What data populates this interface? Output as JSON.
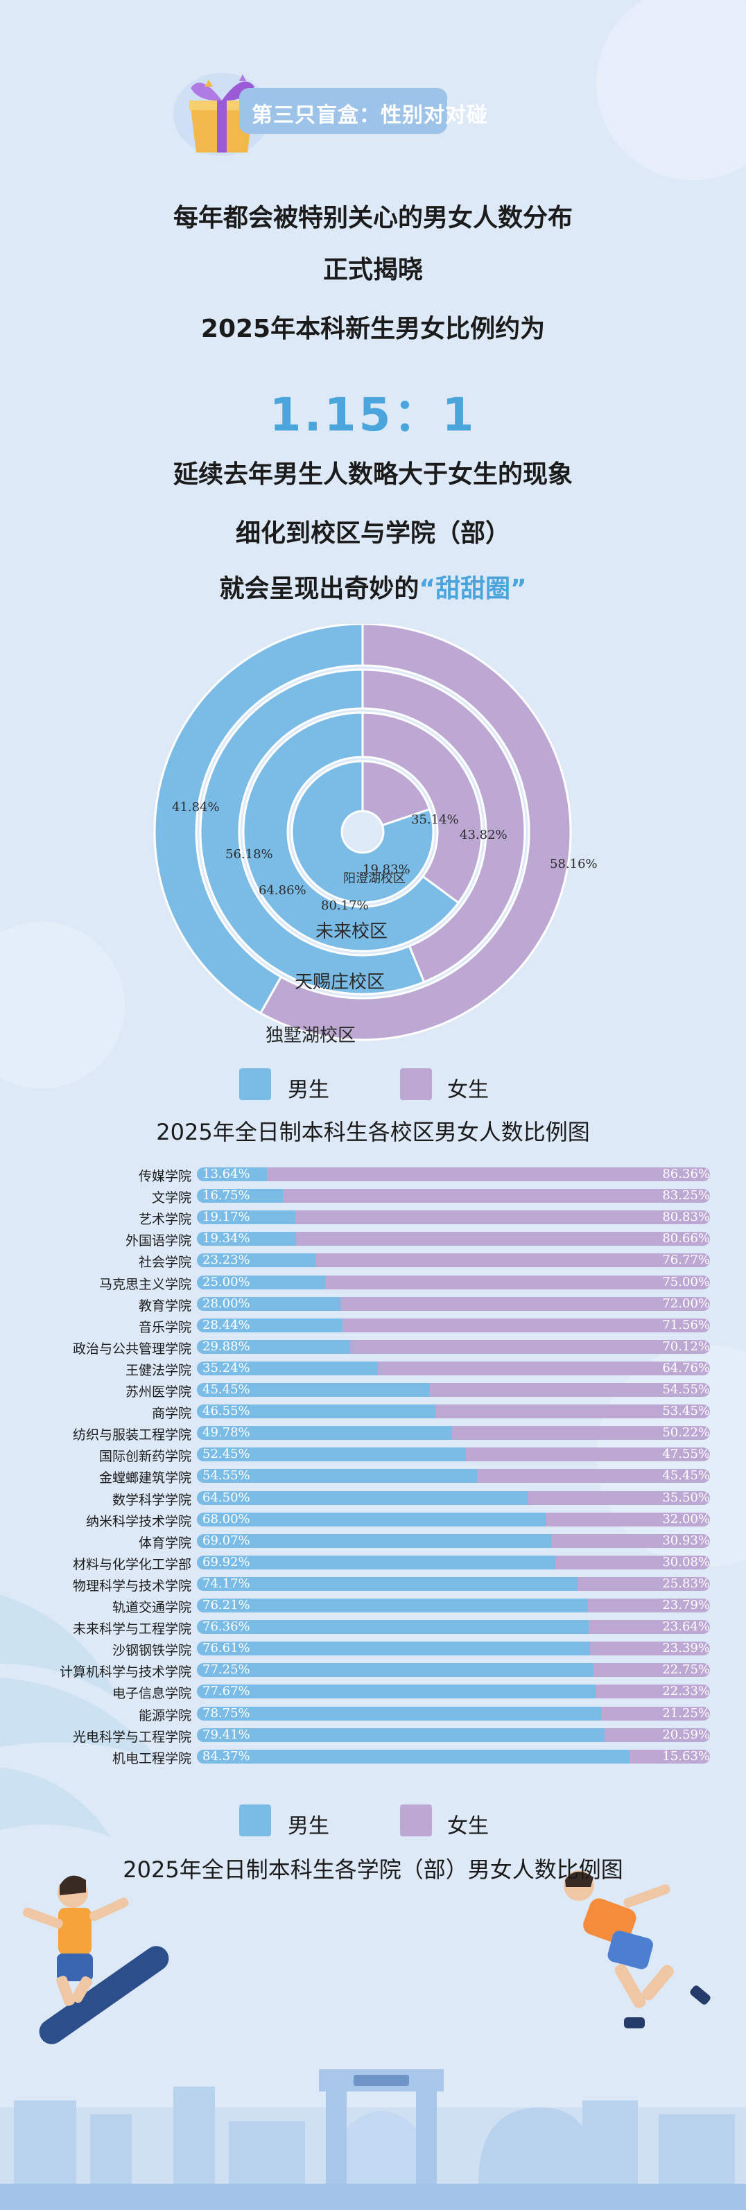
{
  "badge": {
    "text": "第三只盲盒：性别对对碰"
  },
  "intro": {
    "line1": "每年都会被特别关心的男女人数分布",
    "line2": "正式揭晓",
    "line3": "2025年本科新生男女比例约为",
    "ratio": "1.15：1",
    "line4": "延续去年男生人数略大于女生的现象",
    "line5": "细化到校区与学院（部）",
    "line6_prefix": "就会呈现出奇妙的",
    "line6_highlight": "“甜甜圈”"
  },
  "colors": {
    "male": "#7bbce6",
    "female": "#bda8d3",
    "accent": "#4aa5dc",
    "background": "#dde9f6"
  },
  "legend": {
    "male": "男生",
    "female": "女生"
  },
  "chart_data": [
    {
      "type": "pie",
      "subtype": "nested-donut",
      "title": "2025年全日制本科生各校区男女人数比例图",
      "series": [
        {
          "name": "阳澄湖校区",
          "label": "阳澄湖校区",
          "male": 80.17,
          "female": 19.83,
          "male_label": "80.17%",
          "female_label": "19.83%"
        },
        {
          "name": "未来校区",
          "label": "未来校区",
          "male": 64.86,
          "female": 35.14,
          "male_label": "64.86%",
          "female_label": "35.14%"
        },
        {
          "name": "天赐庄校区",
          "label": "天赐庄校区",
          "male": 56.18,
          "female": 43.82,
          "male_label": "56.18%",
          "female_label": "43.82%"
        },
        {
          "name": "独墅湖校区",
          "label": "独墅湖校区",
          "male": 41.84,
          "female": 58.16,
          "male_label": "41.84%",
          "female_label": "58.16%"
        }
      ]
    },
    {
      "type": "bar",
      "orientation": "horizontal-stacked",
      "title": "2025年全日制本科生各学院（部）男女人数比例图",
      "xlim": [
        0,
        100
      ],
      "categories": [
        "传媒学院",
        "文学院",
        "艺术学院",
        "外国语学院",
        "社会学院",
        "马克思主义学院",
        "教育学院",
        "音乐学院",
        "政治与公共管理学院",
        "王健法学院",
        "苏州医学院",
        "商学院",
        "纺织与服装工程学院",
        "国际创新药学院",
        "金螳螂建筑学院",
        "数学科学学院",
        "纳米科学技术学院",
        "体育学院",
        "材料与化学化工学部",
        "物理科学与技术学院",
        "轨道交通学院",
        "未来科学与工程学院",
        "沙钢钢铁学院",
        "计算机科学与技术学院",
        "电子信息学院",
        "能源学院",
        "光电科学与工程学院",
        "机电工程学院"
      ],
      "series": [
        {
          "name": "男生",
          "values": [
            13.64,
            16.75,
            19.17,
            19.34,
            23.23,
            25.0,
            28.0,
            28.44,
            29.88,
            35.24,
            45.45,
            46.55,
            49.78,
            52.45,
            54.55,
            64.5,
            68.0,
            69.07,
            69.92,
            74.17,
            76.21,
            76.36,
            76.61,
            77.25,
            77.67,
            78.75,
            79.41,
            84.37
          ],
          "labels": [
            "13.64%",
            "16.75%",
            "19.17%",
            "19.34%",
            "23.23%",
            "25.00%",
            "28.00%",
            "28.44%",
            "29.88%",
            "35.24%",
            "45.45%",
            "46.55%",
            "49.78%",
            "52.45%",
            "54.55%",
            "64.50%",
            "68.00%",
            "69.07%",
            "69.92%",
            "74.17%",
            "76.21%",
            "76.36%",
            "76.61%",
            "77.25%",
            "77.67%",
            "78.75%",
            "79.41%",
            "84.37%"
          ]
        },
        {
          "name": "女生",
          "values": [
            86.36,
            83.25,
            80.83,
            80.66,
            76.77,
            75.0,
            72.0,
            71.56,
            70.12,
            64.76,
            54.55,
            53.45,
            50.22,
            47.55,
            45.45,
            35.5,
            32.0,
            30.93,
            30.08,
            25.83,
            23.79,
            23.64,
            23.39,
            22.75,
            22.33,
            21.25,
            20.59,
            15.63
          ],
          "labels": [
            "86.36%",
            "83.25%",
            "80.83%",
            "80.66%",
            "76.77%",
            "75.00%",
            "72.00%",
            "71.56%",
            "70.12%",
            "64.76%",
            "54.55%",
            "53.45%",
            "50.22%",
            "47.55%",
            "45.45%",
            "35.50%",
            "32.00%",
            "30.93%",
            "30.08%",
            "25.83%",
            "23.79%",
            "23.64%",
            "23.39%",
            "22.75%",
            "22.33%",
            "21.25%",
            "20.59%",
            "15.63%"
          ]
        }
      ]
    }
  ]
}
